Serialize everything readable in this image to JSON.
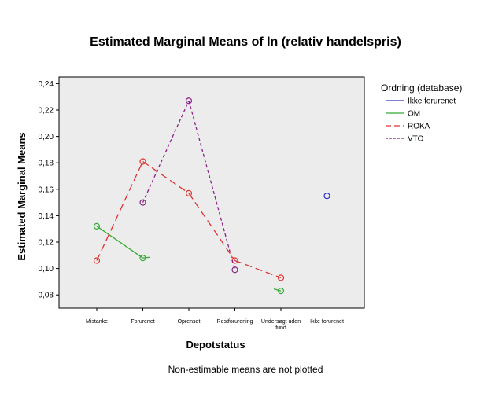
{
  "chart_data": {
    "type": "line",
    "title": "Estimated Marginal Means of ln (relativ handelspris)",
    "xlabel": "Depotstatus",
    "ylabel": "Estimated Marginal Means",
    "footnote": "Non-estimable means are not plotted",
    "categories": [
      "Mistanke",
      "Forurenet",
      "Oprenset",
      "Restforurening",
      "Undersøgt uden fund",
      "Ikke forurenet"
    ],
    "ylim": [
      0.07,
      0.245
    ],
    "yticks": [
      "0,08",
      "0,10",
      "0,12",
      "0,14",
      "0,16",
      "0,18",
      "0,20",
      "0,22",
      "0,24"
    ],
    "ytick_values": [
      0.08,
      0.1,
      0.12,
      0.14,
      0.16,
      0.18,
      0.2,
      0.22,
      0.24
    ],
    "grid": false,
    "legend": {
      "title": "Ordning (database)",
      "position": "right"
    },
    "series": [
      {
        "name": "Ikke forurenet",
        "color": "#3333cc",
        "dash": "solid",
        "values": [
          null,
          null,
          null,
          null,
          null,
          0.155
        ]
      },
      {
        "name": "OM",
        "color": "#33aa33",
        "dash": "solid",
        "values": [
          0.132,
          0.108,
          null,
          null,
          0.083,
          null
        ]
      },
      {
        "name": "ROKA",
        "color": "#dd3333",
        "dash": "long-dash",
        "values": [
          0.106,
          0.181,
          0.157,
          0.106,
          0.093,
          null
        ]
      },
      {
        "name": "VTO",
        "color": "#882288",
        "dash": "short-dash",
        "values": [
          null,
          0.15,
          0.227,
          0.099,
          null,
          null
        ]
      }
    ]
  }
}
